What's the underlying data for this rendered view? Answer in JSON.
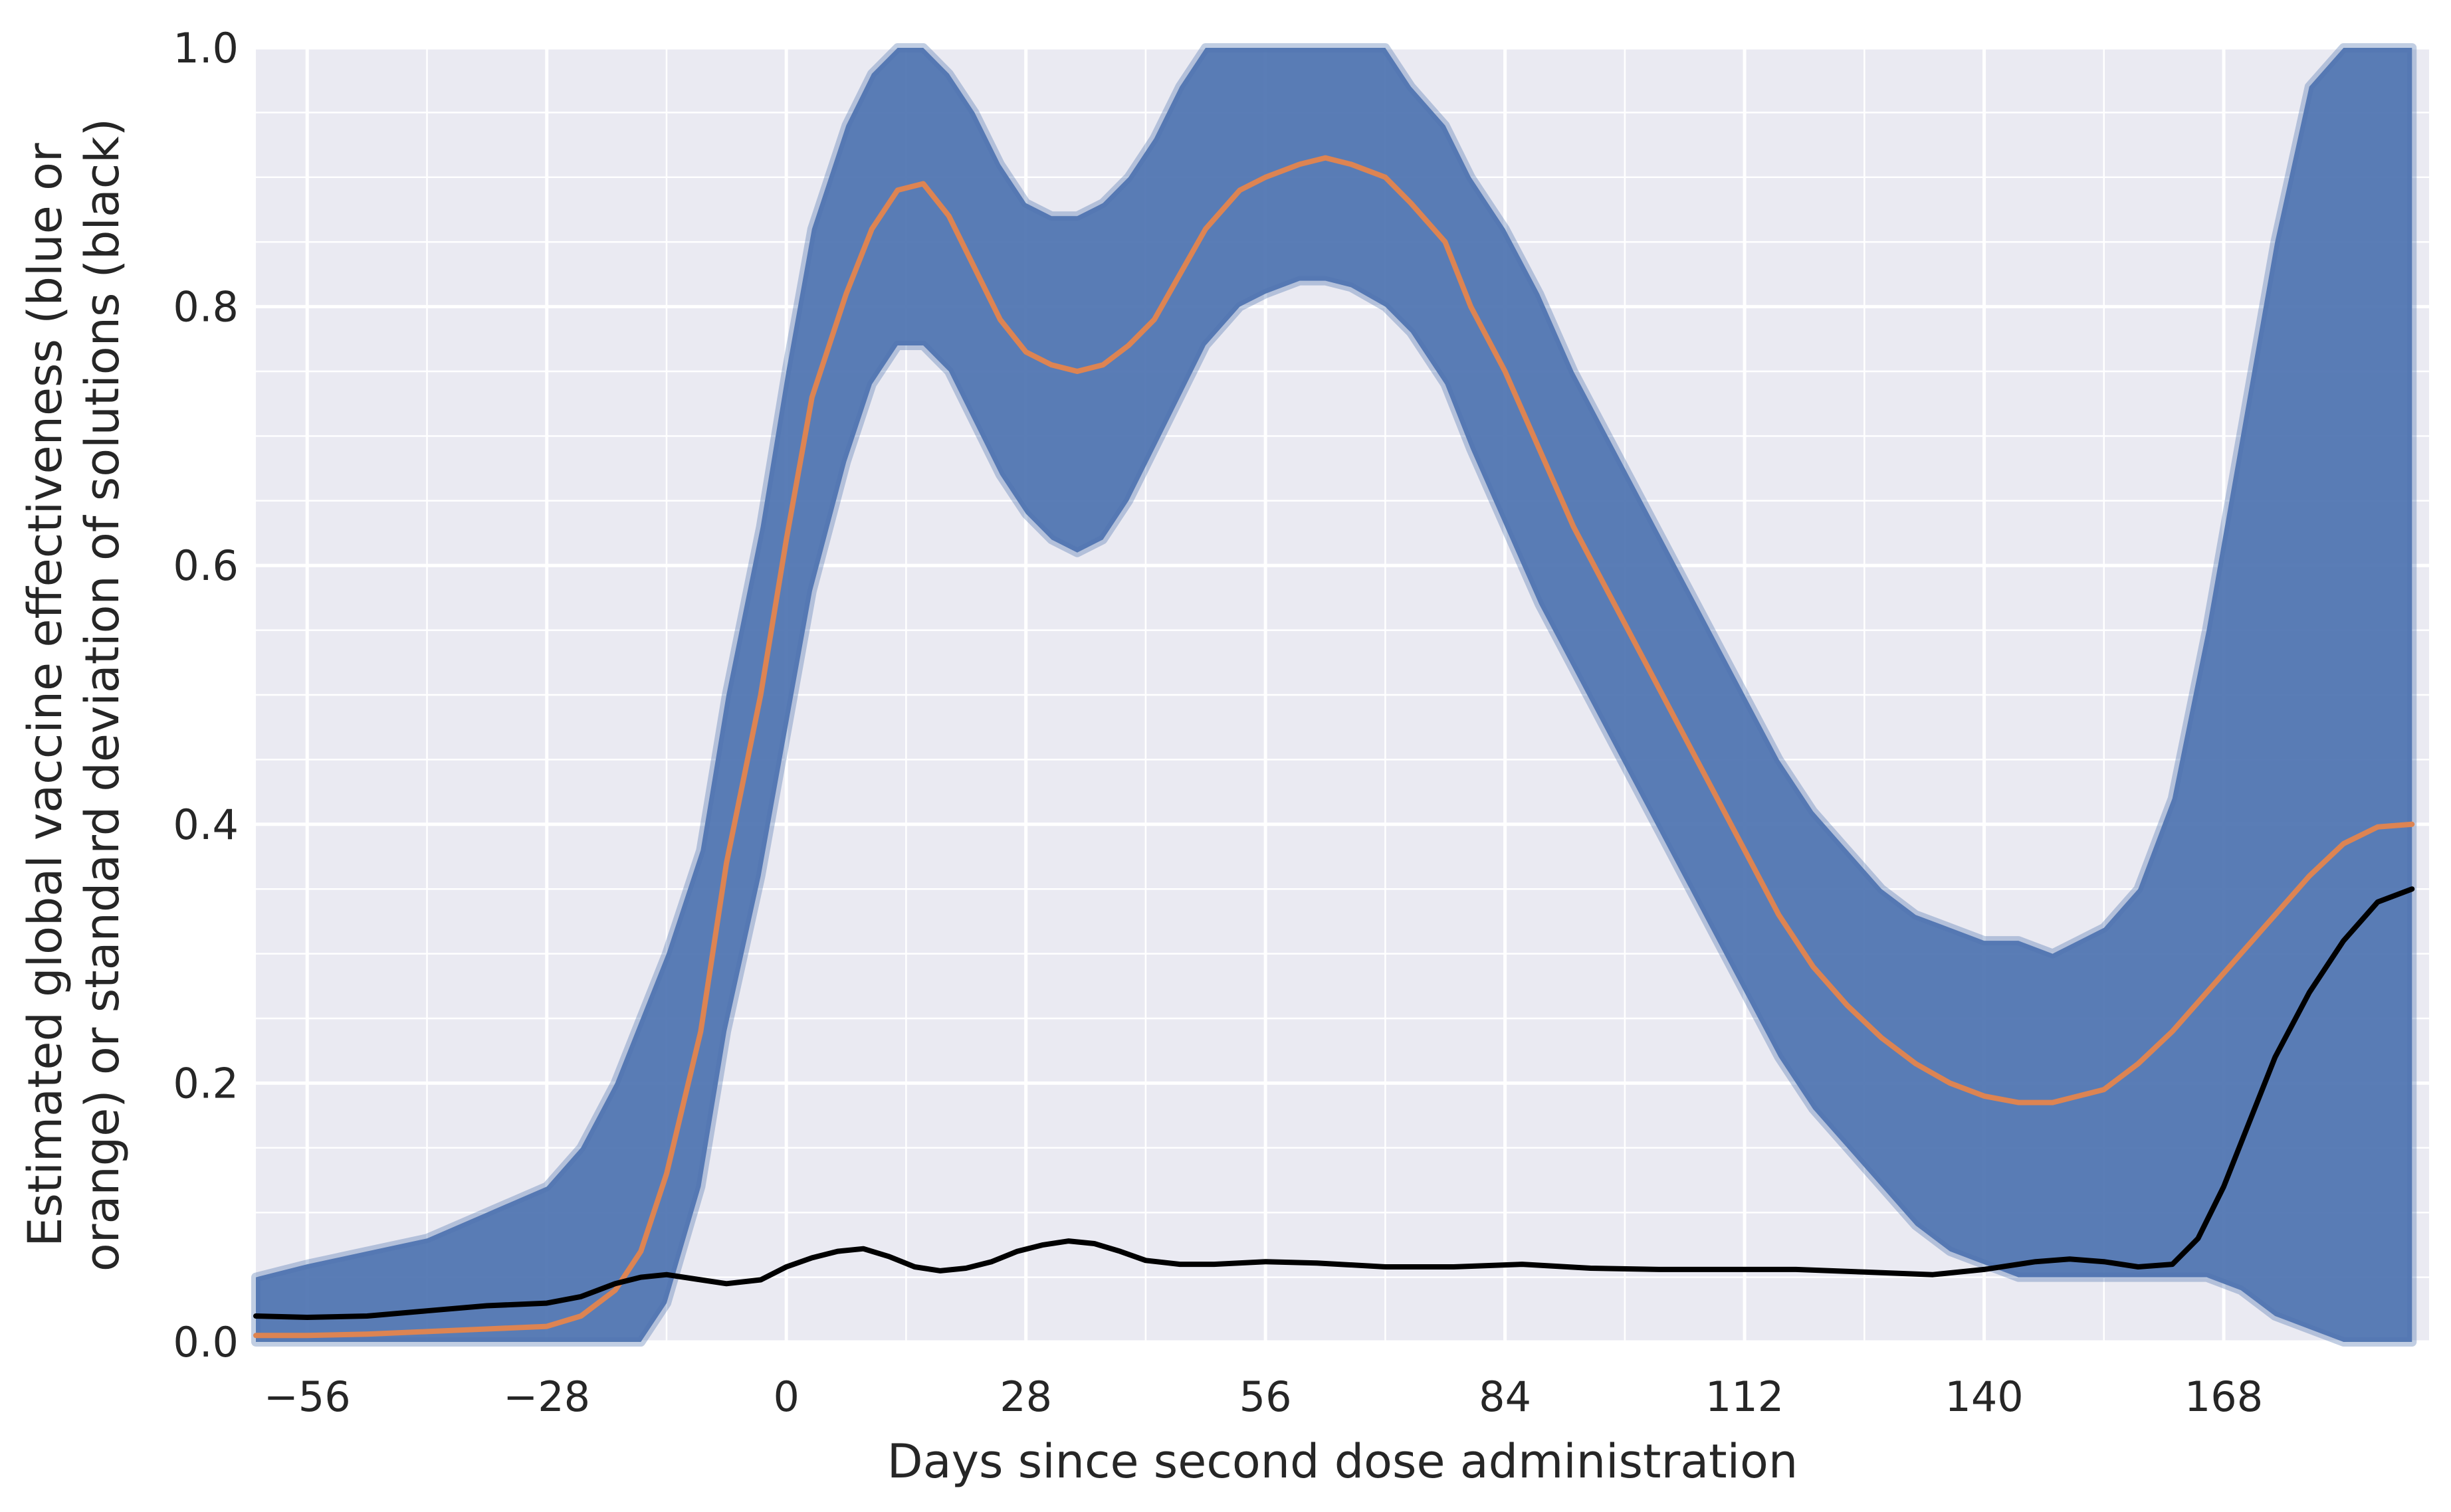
{
  "chart_data": {
    "type": "line",
    "title": "",
    "xlabel": "Days since second dose administration",
    "ylabel_line1": "Estimated global vaccine effectiveness (blue or",
    "ylabel_line2": "orange) or standard deviation of solutions (black)",
    "xlim": [
      -62,
      192
    ],
    "ylim": [
      0,
      1
    ],
    "x_ticks": [
      -56,
      -28,
      0,
      28,
      56,
      84,
      112,
      140,
      168
    ],
    "x_tick_labels": [
      "−56",
      "−28",
      "0",
      "28",
      "56",
      "84",
      "112",
      "140",
      "168"
    ],
    "y_ticks": [
      0,
      0.2,
      0.4,
      0.6,
      0.8,
      1.0
    ],
    "y_tick_labels": [
      "0.0",
      "0.2",
      "0.4",
      "0.6",
      "0.8",
      "1.0"
    ],
    "grid": true,
    "legend": "none",
    "colors": {
      "background": "#eaeaf2",
      "grid": "#ffffff",
      "solutions": "#4c72b0",
      "mean": "#dd8452",
      "std": "#000000"
    },
    "series": [
      {
        "x": [
          -62,
          -56,
          -49,
          -42,
          -35,
          -28,
          -24,
          -20,
          -17,
          -14,
          -10,
          -7,
          -3,
          0,
          3,
          7,
          10,
          13,
          16,
          19,
          22,
          25,
          28,
          31,
          34,
          37,
          40,
          43,
          46,
          49,
          53,
          56,
          60,
          63,
          66,
          70,
          73,
          77,
          80,
          84,
          88,
          92,
          96,
          100,
          104,
          108,
          112,
          116,
          120,
          124,
          128,
          132,
          136,
          140,
          144,
          148,
          151,
          154,
          158,
          162,
          166,
          170,
          174,
          178,
          182,
          186,
          190
        ],
        "y": [
          0.005,
          0.005,
          0.006,
          0.008,
          0.01,
          0.012,
          0.02,
          0.04,
          0.07,
          0.13,
          0.24,
          0.37,
          0.5,
          0.62,
          0.73,
          0.81,
          0.86,
          0.89,
          0.895,
          0.87,
          0.83,
          0.79,
          0.765,
          0.755,
          0.75,
          0.755,
          0.77,
          0.79,
          0.825,
          0.86,
          0.89,
          0.9,
          0.91,
          0.915,
          0.91,
          0.9,
          0.88,
          0.85,
          0.8,
          0.75,
          0.69,
          0.63,
          0.58,
          0.53,
          0.48,
          0.43,
          0.38,
          0.33,
          0.29,
          0.26,
          0.235,
          0.215,
          0.2,
          0.19,
          0.185,
          0.185,
          0.19,
          0.195,
          0.215,
          0.24,
          0.27,
          0.3,
          0.33,
          0.36,
          0.385,
          0.398,
          0.4
        ]
      },
      {
        "x": [
          -62,
          -56,
          -49,
          -42,
          -35,
          -28,
          -24,
          -20,
          -17,
          -14,
          -10,
          -7,
          -3,
          0,
          3,
          6,
          9,
          12,
          15,
          18,
          21,
          24,
          27,
          30,
          33,
          36,
          39,
          42,
          46,
          50,
          56,
          62,
          70,
          78,
          86,
          94,
          102,
          110,
          118,
          126,
          134,
          140,
          146,
          150,
          154,
          158,
          162,
          165,
          168,
          171,
          174,
          178,
          182,
          186,
          190
        ],
        "y": [
          0.02,
          0.019,
          0.02,
          0.024,
          0.028,
          0.03,
          0.035,
          0.045,
          0.05,
          0.052,
          0.048,
          0.045,
          0.048,
          0.058,
          0.065,
          0.07,
          0.072,
          0.066,
          0.058,
          0.055,
          0.057,
          0.062,
          0.07,
          0.075,
          0.078,
          0.076,
          0.07,
          0.063,
          0.06,
          0.06,
          0.062,
          0.061,
          0.058,
          0.058,
          0.06,
          0.057,
          0.056,
          0.056,
          0.056,
          0.054,
          0.052,
          0.056,
          0.062,
          0.064,
          0.062,
          0.058,
          0.06,
          0.08,
          0.12,
          0.17,
          0.22,
          0.27,
          0.31,
          0.34,
          0.35
        ]
      }
    ],
    "solution_band": {
      "x": [
        -62,
        -56,
        -49,
        -42,
        -35,
        -28,
        -24,
        -20,
        -17,
        -14,
        -10,
        -7,
        -3,
        0,
        3,
        7,
        10,
        13,
        16,
        19,
        22,
        25,
        28,
        31,
        34,
        37,
        40,
        43,
        46,
        49,
        53,
        56,
        60,
        63,
        66,
        70,
        73,
        77,
        80,
        84,
        88,
        92,
        96,
        100,
        104,
        108,
        112,
        116,
        120,
        124,
        128,
        132,
        136,
        140,
        144,
        148,
        151,
        154,
        158,
        162,
        166,
        170,
        174,
        178,
        182,
        186,
        190
      ],
      "lower": [
        0,
        0,
        0,
        0,
        0,
        0,
        0,
        0,
        0,
        0.03,
        0.12,
        0.24,
        0.36,
        0.47,
        0.58,
        0.68,
        0.74,
        0.77,
        0.77,
        0.75,
        0.71,
        0.67,
        0.64,
        0.62,
        0.61,
        0.62,
        0.65,
        0.69,
        0.73,
        0.77,
        0.8,
        0.81,
        0.82,
        0.82,
        0.815,
        0.8,
        0.78,
        0.74,
        0.69,
        0.63,
        0.57,
        0.52,
        0.47,
        0.42,
        0.37,
        0.32,
        0.27,
        0.22,
        0.18,
        0.15,
        0.12,
        0.09,
        0.07,
        0.06,
        0.05,
        0.05,
        0.05,
        0.05,
        0.05,
        0.05,
        0.05,
        0.04,
        0.02,
        0.01,
        0.0,
        0.0,
        0.0
      ],
      "upper": [
        0.05,
        0.06,
        0.07,
        0.08,
        0.1,
        0.12,
        0.15,
        0.2,
        0.25,
        0.3,
        0.38,
        0.5,
        0.63,
        0.75,
        0.86,
        0.94,
        0.98,
        1.0,
        1.0,
        0.98,
        0.95,
        0.91,
        0.88,
        0.87,
        0.87,
        0.88,
        0.9,
        0.93,
        0.97,
        1.0,
        1.0,
        1.0,
        1.0,
        1.0,
        1.0,
        1.0,
        0.97,
        0.94,
        0.9,
        0.86,
        0.81,
        0.75,
        0.7,
        0.65,
        0.6,
        0.55,
        0.5,
        0.45,
        0.41,
        0.38,
        0.35,
        0.33,
        0.32,
        0.31,
        0.31,
        0.3,
        0.31,
        0.32,
        0.35,
        0.42,
        0.55,
        0.7,
        0.85,
        0.97,
        1.0,
        1.0,
        1.0
      ]
    }
  }
}
